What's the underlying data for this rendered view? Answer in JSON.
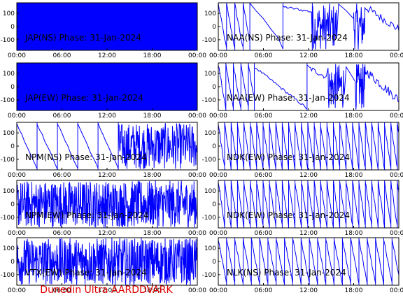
{
  "footer": {
    "text": "Dunedin Ultra AARDDVARK",
    "color": "#e00000"
  },
  "colors": {
    "trace": "#0000ff",
    "axes": "#000000",
    "background": "#ffffff"
  },
  "chart_data": [
    {
      "type": "line",
      "title": "JAP(NS) Phase: 31-Jan-2024",
      "pattern": "saturated",
      "x_ticks": [
        "00:00",
        "06:00",
        "12:00",
        "18:00",
        "00:00"
      ],
      "y_ticks": [
        "100",
        "0",
        "-100"
      ],
      "ylim": [
        -180,
        180
      ]
    },
    {
      "type": "line",
      "title": "NAA(NS) Phase: 31-Jan-2024",
      "pattern": "naa_ns",
      "x_ticks": [
        "00:00",
        "06:00",
        "12:00",
        "18:00",
        "00:00"
      ],
      "y_ticks": [
        "100",
        "0",
        "-100"
      ],
      "ylim": [
        -180,
        180
      ]
    },
    {
      "type": "line",
      "title": "JAP(EW) Phase: 31-Jan-2024",
      "pattern": "saturated",
      "x_ticks": [
        "00:00",
        "06:00",
        "12:00",
        "18:00",
        "00:00"
      ],
      "y_ticks": [
        "100",
        "0",
        "-100"
      ],
      "ylim": [
        -180,
        180
      ]
    },
    {
      "type": "line",
      "title": "NAA(EW) Phase: 31-Jan-2024",
      "pattern": "naa_ew",
      "x_ticks": [
        "00:00",
        "06:00",
        "12:00",
        "18:00",
        "00:00"
      ],
      "y_ticks": [
        "100",
        "0",
        "-100"
      ],
      "ylim": [
        -180,
        180
      ]
    },
    {
      "type": "line",
      "title": "NPM(NS) Phase: 31-Jan-2024",
      "pattern": "npm_ns",
      "x_ticks": [
        "00:00",
        "06:00",
        "12:00",
        "18:00",
        "00:00"
      ],
      "y_ticks": [
        "100",
        "0",
        "-100"
      ],
      "ylim": [
        -180,
        180
      ]
    },
    {
      "type": "line",
      "title": "NDK(EW) Phase: 31-Jan-2024",
      "pattern": "sawtooth_dense",
      "x_ticks": [
        "00:00",
        "06:00",
        "12:00",
        "18:00",
        "00:00"
      ],
      "y_ticks": [
        "100",
        "0",
        "-100"
      ],
      "ylim": [
        -180,
        180
      ]
    },
    {
      "type": "line",
      "title": "NPM(EW) Phase: 31-Jan-2024",
      "pattern": "noisy",
      "x_ticks": [
        "00:00",
        "06:00",
        "12:00",
        "18:00",
        "00:00"
      ],
      "y_ticks": [
        "100",
        "0",
        "-100"
      ],
      "ylim": [
        -180,
        180
      ]
    },
    {
      "type": "line",
      "title": "NDK(EW) Phase: 31-Jan-2024",
      "pattern": "sawtooth_dense",
      "x_ticks": [
        "00:00",
        "06:00",
        "12:00",
        "18:00",
        "00:00"
      ],
      "y_ticks": [
        "100",
        "0",
        "-100"
      ],
      "ylim": [
        -180,
        180
      ]
    },
    {
      "type": "line",
      "title": "VTX(EW) Phase: 31-Jan-2024",
      "pattern": "noisy",
      "x_ticks": [
        "00:00",
        "06:00",
        "12:00",
        "18:00",
        "00:00"
      ],
      "y_ticks": [
        "100",
        "0",
        "-100"
      ],
      "ylim": [
        -180,
        180
      ]
    },
    {
      "type": "line",
      "title": "NLK(NS) Phase: 31-Jan-2024",
      "pattern": "sawtooth_sparse",
      "x_ticks": [
        "00:00",
        "06:00",
        "12:00",
        "18:00",
        "00:00"
      ],
      "y_ticks": [
        "100",
        "0",
        "-100"
      ],
      "ylim": [
        -180,
        180
      ]
    }
  ]
}
